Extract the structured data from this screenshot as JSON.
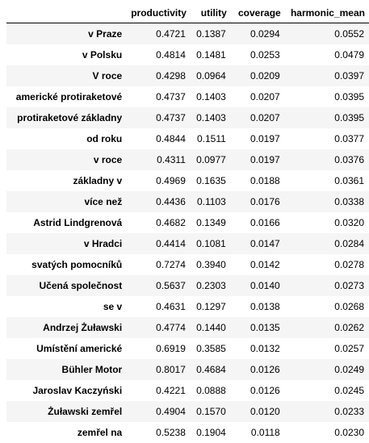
{
  "columns": [
    "",
    "productivity",
    "utility",
    "coverage",
    "harmonic_mean"
  ],
  "rows": [
    {
      "label": "v Praze",
      "productivity": "0.4721",
      "utility": "0.1387",
      "coverage": "0.0294",
      "harmonic_mean": "0.0552"
    },
    {
      "label": "v Polsku",
      "productivity": "0.4814",
      "utility": "0.1481",
      "coverage": "0.0253",
      "harmonic_mean": "0.0479"
    },
    {
      "label": "V roce",
      "productivity": "0.4298",
      "utility": "0.0964",
      "coverage": "0.0209",
      "harmonic_mean": "0.0397"
    },
    {
      "label": "americké protiraketové",
      "productivity": "0.4737",
      "utility": "0.1403",
      "coverage": "0.0207",
      "harmonic_mean": "0.0395"
    },
    {
      "label": "protiraketové základny",
      "productivity": "0.4737",
      "utility": "0.1403",
      "coverage": "0.0207",
      "harmonic_mean": "0.0395"
    },
    {
      "label": "od roku",
      "productivity": "0.4844",
      "utility": "0.1511",
      "coverage": "0.0197",
      "harmonic_mean": "0.0377"
    },
    {
      "label": "v roce",
      "productivity": "0.4311",
      "utility": "0.0977",
      "coverage": "0.0197",
      "harmonic_mean": "0.0376"
    },
    {
      "label": "základny v",
      "productivity": "0.4969",
      "utility": "0.1635",
      "coverage": "0.0188",
      "harmonic_mean": "0.0361"
    },
    {
      "label": "více než",
      "productivity": "0.4436",
      "utility": "0.1103",
      "coverage": "0.0176",
      "harmonic_mean": "0.0338"
    },
    {
      "label": "Astrid Lindgrenová",
      "productivity": "0.4682",
      "utility": "0.1349",
      "coverage": "0.0166",
      "harmonic_mean": "0.0320"
    },
    {
      "label": "v Hradci",
      "productivity": "0.4414",
      "utility": "0.1081",
      "coverage": "0.0147",
      "harmonic_mean": "0.0284"
    },
    {
      "label": "svatých pomocníků",
      "productivity": "0.7274",
      "utility": "0.3940",
      "coverage": "0.0142",
      "harmonic_mean": "0.0278"
    },
    {
      "label": "Učená společnost",
      "productivity": "0.5637",
      "utility": "0.2303",
      "coverage": "0.0140",
      "harmonic_mean": "0.0273"
    },
    {
      "label": "se v",
      "productivity": "0.4631",
      "utility": "0.1297",
      "coverage": "0.0138",
      "harmonic_mean": "0.0268"
    },
    {
      "label": "Andrzej Żuławski",
      "productivity": "0.4774",
      "utility": "0.1440",
      "coverage": "0.0135",
      "harmonic_mean": "0.0262"
    },
    {
      "label": "Umístění americké",
      "productivity": "0.6919",
      "utility": "0.3585",
      "coverage": "0.0132",
      "harmonic_mean": "0.0257"
    },
    {
      "label": "Bühler Motor",
      "productivity": "0.8017",
      "utility": "0.4684",
      "coverage": "0.0126",
      "harmonic_mean": "0.0249"
    },
    {
      "label": "Jaroslav Kaczyński",
      "productivity": "0.4221",
      "utility": "0.0888",
      "coverage": "0.0126",
      "harmonic_mean": "0.0245"
    },
    {
      "label": "Żuławski zemřel",
      "productivity": "0.4904",
      "utility": "0.1570",
      "coverage": "0.0120",
      "harmonic_mean": "0.0233"
    },
    {
      "label": "zemřel na",
      "productivity": "0.5238",
      "utility": "0.1904",
      "coverage": "0.0118",
      "harmonic_mean": "0.0230"
    }
  ]
}
